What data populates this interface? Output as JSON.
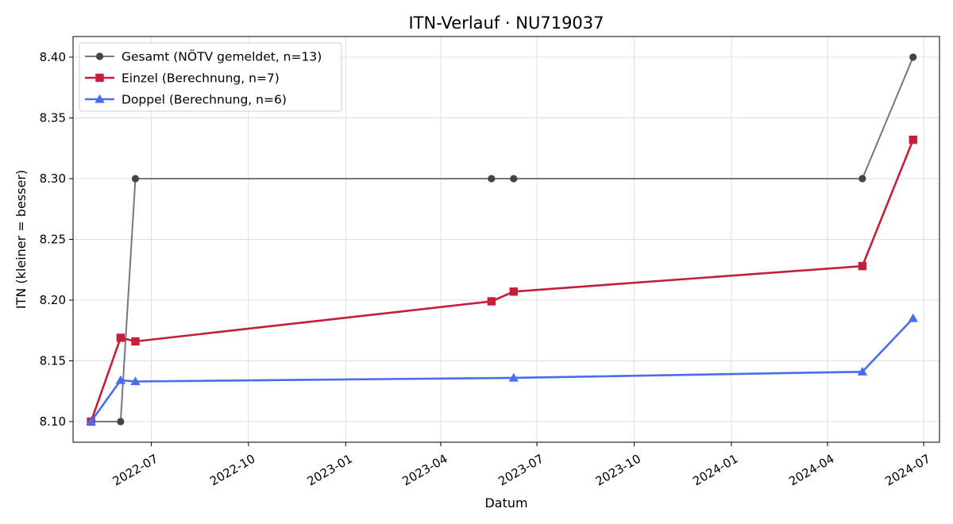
{
  "chart_data": {
    "type": "line",
    "title": "ITN-Verlauf · NU719037",
    "xlabel": "Datum",
    "ylabel": "ITN  (kleiner = besser)",
    "x_axis_type": "date",
    "xlim": [
      "2022-04-18",
      "2024-07-16"
    ],
    "ylim": [
      8.083,
      8.417
    ],
    "x_ticks": [
      "2022-07",
      "2022-10",
      "2023-01",
      "2023-04",
      "2023-07",
      "2023-10",
      "2024-01",
      "2024-04",
      "2024-07"
    ],
    "y_ticks": [
      "8.10",
      "8.15",
      "8.20",
      "8.25",
      "8.30",
      "8.35",
      "8.40"
    ],
    "grid": true,
    "legend_position": "top-left",
    "series": [
      {
        "name": "Gesamt (NÖTV gemeldet, n=13)",
        "color": "#555555",
        "marker": "circle",
        "points": [
          {
            "x": "2022-05-05",
            "y": 8.1
          },
          {
            "x": "2022-06-02",
            "y": 8.1
          },
          {
            "x": "2022-06-16",
            "y": 8.3
          },
          {
            "x": "2023-05-19",
            "y": 8.3
          },
          {
            "x": "2023-06-09",
            "y": 8.3
          },
          {
            "x": "2024-05-04",
            "y": 8.3
          },
          {
            "x": "2024-06-21",
            "y": 8.4
          }
        ]
      },
      {
        "name": "Einzel (Berechnung, n=7)",
        "color": "#c41e3a",
        "marker": "square",
        "points": [
          {
            "x": "2022-05-05",
            "y": 8.1
          },
          {
            "x": "2022-06-02",
            "y": 8.169
          },
          {
            "x": "2022-06-16",
            "y": 8.166
          },
          {
            "x": "2023-05-19",
            "y": 8.199
          },
          {
            "x": "2023-06-09",
            "y": 8.207
          },
          {
            "x": "2024-05-04",
            "y": 8.228
          },
          {
            "x": "2024-06-21",
            "y": 8.332
          }
        ]
      },
      {
        "name": "Doppel (Berechnung, n=6)",
        "color": "#4a6cf0",
        "marker": "triangle",
        "points": [
          {
            "x": "2022-05-05",
            "y": 8.1
          },
          {
            "x": "2022-06-02",
            "y": 8.134
          },
          {
            "x": "2022-06-16",
            "y": 8.133
          },
          {
            "x": "2023-06-09",
            "y": 8.136
          },
          {
            "x": "2024-05-04",
            "y": 8.141
          },
          {
            "x": "2024-06-21",
            "y": 8.185
          }
        ]
      }
    ]
  }
}
